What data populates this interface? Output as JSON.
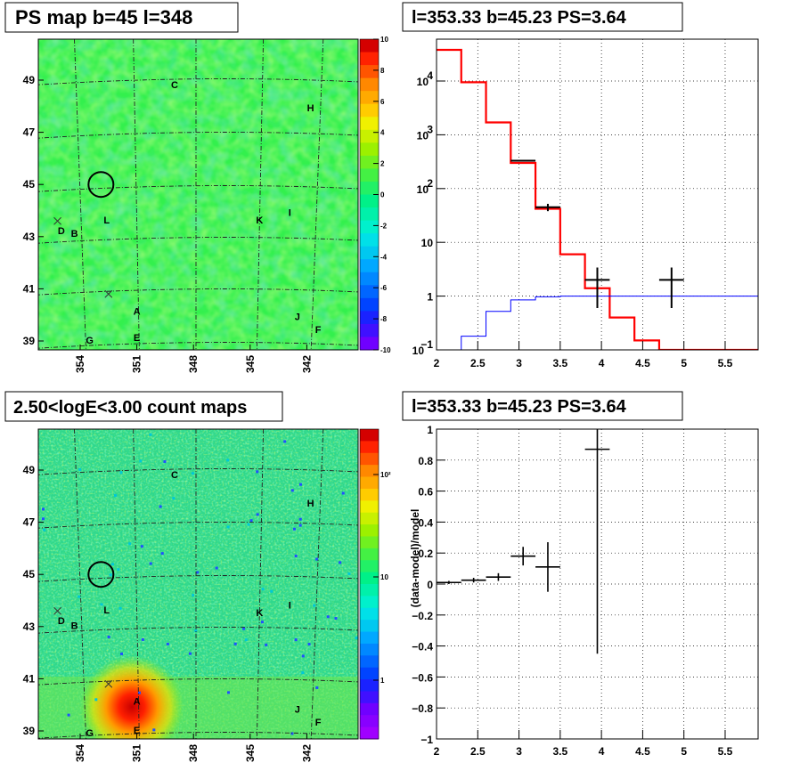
{
  "chart_data": [
    {
      "type": "heatmap",
      "title": "PS map b=45 l=348",
      "xticks": [
        "354",
        "351",
        "348",
        "345",
        "342"
      ],
      "yticks": [
        "49",
        "47",
        "45",
        "43",
        "41",
        "39"
      ],
      "zticks": [
        "10",
        "8",
        "6",
        "4",
        "2",
        "0",
        "-2",
        "-4",
        "-6",
        "-8",
        "-10"
      ],
      "zrange": [
        -10,
        10
      ],
      "background_value": 0,
      "sources": [
        {
          "label": "C",
          "l": 349.0,
          "b": 48.7
        },
        {
          "label": "H",
          "l": 341.8,
          "b": 47.8
        },
        {
          "label": "L",
          "l": 352.6,
          "b": 43.5
        },
        {
          "label": "K",
          "l": 344.5,
          "b": 43.5
        },
        {
          "label": "I",
          "l": 342.9,
          "b": 43.8
        },
        {
          "label": "D",
          "l": 355.0,
          "b": 43.1
        },
        {
          "label": "B",
          "l": 354.3,
          "b": 43.0
        },
        {
          "label": "A",
          "l": 351.0,
          "b": 40.0
        },
        {
          "label": "J",
          "l": 342.5,
          "b": 39.8
        },
        {
          "label": "F",
          "l": 341.4,
          "b": 39.3
        },
        {
          "label": "E",
          "l": 351.0,
          "b": 39.0
        },
        {
          "label": "G",
          "l": 353.5,
          "b": 38.9
        }
      ],
      "crosses": [
        {
          "l": 355.2,
          "b": 43.6
        },
        {
          "l": 352.5,
          "b": 40.8
        }
      ],
      "circle": {
        "l": 352.9,
        "b": 45.0
      }
    },
    {
      "type": "line",
      "title": "l=353.33 b=45.23 PS=3.64",
      "xlim": [
        2,
        5.9
      ],
      "ylog": true,
      "ylim": [
        0.1,
        60000
      ],
      "xticks": [
        "2",
        "2.5",
        "3",
        "3.5",
        "4",
        "4.5",
        "5",
        "5.5"
      ],
      "yticks": [
        {
          "label": "10",
          "sup": "4",
          "v": 10000
        },
        {
          "label": "10",
          "sup": "3",
          "v": 1000
        },
        {
          "label": "10",
          "sup": "2",
          "v": 100
        },
        {
          "label": "10",
          "sup": "",
          "v": 10
        },
        {
          "label": "1",
          "sup": "",
          "v": 1
        },
        {
          "label": "10",
          "sup": "−1",
          "v": 0.1
        }
      ],
      "series": [
        {
          "color": "#ff0000",
          "edges": [
            2,
            2.3,
            2.6,
            2.9,
            3.2,
            3.5,
            3.8,
            4.1,
            4.4,
            4.7,
            5.0,
            5.3,
            5.6,
            5.9
          ],
          "values": [
            38000,
            9500,
            1700,
            300,
            42,
            6,
            1.4,
            0.4,
            0.15,
            0.1,
            0.1,
            0.1,
            0.1
          ]
        },
        {
          "color": "#0000ff",
          "edges": [
            2,
            2.3,
            2.6,
            2.9,
            3.2,
            3.5,
            3.8,
            4.1,
            4.4,
            4.7,
            5.0,
            5.3,
            5.6,
            5.9
          ],
          "values": [
            0.07,
            0.18,
            0.52,
            0.85,
            0.97,
            1.0,
            1.0,
            1.0,
            1.0,
            1.0,
            1.0,
            1.0,
            1.0
          ]
        },
        {
          "color": "#000000",
          "points": [
            {
              "x": 3.05,
              "y": 330,
              "xerr": 0.15,
              "ylo": 330,
              "yhi": 330
            },
            {
              "x": 3.35,
              "y": 45,
              "xerr": 0.15,
              "ylo": 38,
              "yhi": 52
            },
            {
              "x": 3.95,
              "y": 2,
              "xerr": 0.15,
              "ylo": 0.6,
              "yhi": 3.4
            },
            {
              "x": 4.85,
              "y": 2,
              "xerr": 0.15,
              "ylo": 0.6,
              "yhi": 3.4
            }
          ]
        }
      ]
    },
    {
      "type": "heatmap",
      "title": "2.50<logE<3.00 count maps",
      "xticks": [
        "354",
        "351",
        "348",
        "345",
        "342"
      ],
      "yticks": [
        "49",
        "47",
        "45",
        "43",
        "41",
        "39"
      ],
      "zticks": [
        "10²",
        "10",
        "1"
      ],
      "zscale": "log",
      "peak": {
        "label": "A",
        "l": 351.0,
        "b": 40.0
      },
      "sources": [
        {
          "label": "C",
          "l": 349.0,
          "b": 48.7
        },
        {
          "label": "H",
          "l": 341.8,
          "b": 47.6
        },
        {
          "label": "L",
          "l": 352.6,
          "b": 43.5
        },
        {
          "label": "K",
          "l": 344.5,
          "b": 43.4
        },
        {
          "label": "I",
          "l": 342.9,
          "b": 43.7
        },
        {
          "label": "D",
          "l": 355.0,
          "b": 43.1
        },
        {
          "label": "B",
          "l": 354.3,
          "b": 42.9
        },
        {
          "label": "A",
          "l": 351.0,
          "b": 40.0
        },
        {
          "label": "J",
          "l": 342.5,
          "b": 39.7
        },
        {
          "label": "F",
          "l": 341.4,
          "b": 39.2
        },
        {
          "label": "E",
          "l": 351.0,
          "b": 38.9
        },
        {
          "label": "G",
          "l": 353.5,
          "b": 38.8
        }
      ],
      "crosses": [
        {
          "l": 355.2,
          "b": 43.6
        },
        {
          "l": 352.5,
          "b": 40.8
        }
      ],
      "circle": {
        "l": 352.9,
        "b": 45.0
      }
    },
    {
      "type": "scatter",
      "title": "l=353.33 b=45.23 PS=3.64",
      "ylabel": "(data-model)/model",
      "xlim": [
        2,
        5.9
      ],
      "ylim": [
        -1,
        1
      ],
      "xticks": [
        "2",
        "2.5",
        "3",
        "3.5",
        "4",
        "4.5",
        "5",
        "5.5"
      ],
      "yticks": [
        "1",
        "0.8",
        "0.6",
        "0.4",
        "0.2",
        "0",
        "−0.2",
        "−0.4",
        "−0.6",
        "−0.8",
        "−1"
      ],
      "points": [
        {
          "x": 2.15,
          "y": 0.01,
          "xerr": 0.15,
          "ylo": 0.0,
          "yhi": 0.02
        },
        {
          "x": 2.45,
          "y": 0.025,
          "xerr": 0.15,
          "ylo": 0.01,
          "yhi": 0.04
        },
        {
          "x": 2.75,
          "y": 0.045,
          "xerr": 0.15,
          "ylo": 0.02,
          "yhi": 0.07
        },
        {
          "x": 3.05,
          "y": 0.18,
          "xerr": 0.15,
          "ylo": 0.12,
          "yhi": 0.24
        },
        {
          "x": 3.35,
          "y": 0.11,
          "xerr": 0.15,
          "ylo": -0.05,
          "yhi": 0.27
        },
        {
          "x": 3.95,
          "y": 0.87,
          "xerr": 0.15,
          "ylo": -0.45,
          "yhi": 1.0
        }
      ]
    }
  ]
}
